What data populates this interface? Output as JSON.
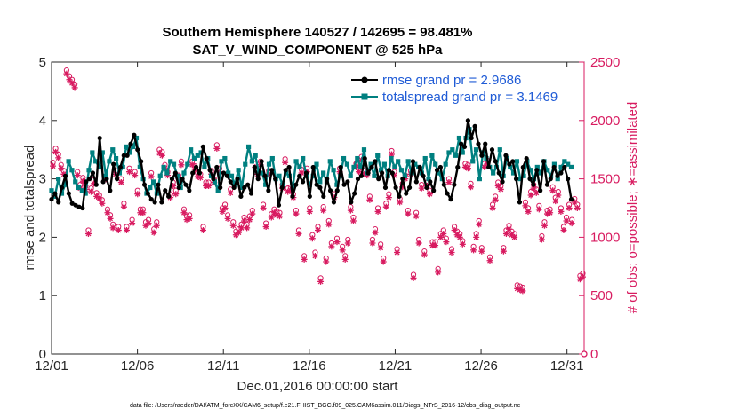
{
  "chart_data": {
    "type": "line",
    "title": "Southern Hemisphere 140527 / 142695 = 98.481%",
    "subtitle": "SAT_V_WIND_COMPONENT @ 525 hPa",
    "xlabel": "Dec.01,2016 00:00:00 start",
    "ylabel_left": "rmse and totalspread",
    "ylabel_right": "# of obs: o=possible; ∗=assimilated",
    "x_ticks": [
      "12/01",
      "12/06",
      "12/11",
      "12/16",
      "12/21",
      "12/26",
      "12/31"
    ],
    "x_tick_days": [
      0,
      5,
      10,
      15,
      20,
      25,
      30
    ],
    "xlim": [
      0,
      31
    ],
    "ylim_left": [
      0,
      5
    ],
    "y_ticks_left": [
      "0",
      "1",
      "2",
      "3",
      "4",
      "5"
    ],
    "ylim_right": [
      0,
      2500
    ],
    "y_ticks_right": [
      "0",
      "500",
      "1000",
      "1500",
      "2000",
      "2500"
    ],
    "legend_position": "top-right",
    "footer": "data file: /Users/raeder/DAI/ATM_forcXX/CAM6_setup/f.e21.FHIST_BGC.f09_025.CAM6assim.011/Diags_NTrS_2016-12/obs_diag_output.nc",
    "colors": {
      "rmse": "#000000",
      "spread": "#008080",
      "obs": "#d81b60",
      "right_axis": "#d81b60"
    },
    "series": [
      {
        "name": "rmse grand pr = 2.9686",
        "legend": "rmse grand pr = 2.9686",
        "axis": "left",
        "color": "#000000",
        "values": [
          2.65,
          2.75,
          2.6,
          2.85,
          3.05,
          2.75,
          2.58,
          2.55,
          2.52,
          2.5,
          2.95,
          3.0,
          3.1,
          2.9,
          3.7,
          2.95,
          3.0,
          2.8,
          3.25,
          3.0,
          3.2,
          3.4,
          3.4,
          3.6,
          3.75,
          3.5,
          3.3,
          2.9,
          2.75,
          2.65,
          2.6,
          2.9,
          2.6,
          2.8,
          2.7,
          3.0,
          3.1,
          2.85,
          3.0,
          2.9,
          2.8,
          3.1,
          3.2,
          3.1,
          3.55,
          3.35,
          3.15,
          3.0,
          3.2,
          2.85,
          3.1,
          3.05,
          2.95,
          2.85,
          3.0,
          2.7,
          2.85,
          2.9,
          2.75,
          3.2,
          3.0,
          3.3,
          3.05,
          2.8,
          3.15,
          3.0,
          2.55,
          2.85,
          3.15,
          3.2,
          2.7,
          2.9,
          3.05,
          2.95,
          3.1,
          2.7,
          3.2,
          2.9,
          2.85,
          2.7,
          3.0,
          2.8,
          2.6,
          2.8,
          3.2,
          2.9,
          2.95,
          2.6,
          2.75,
          3.0,
          3.05,
          3.35,
          3.1,
          3.2,
          3.3,
          3.0,
          3.1,
          2.85,
          3.15,
          3.1,
          2.85,
          2.7,
          3.0,
          2.75,
          2.85,
          3.3,
          2.95,
          3.2,
          3.05,
          2.85,
          2.95,
          2.8,
          3.15,
          3.2,
          2.9,
          2.75,
          2.65,
          2.9,
          3.2,
          3.6,
          3.55,
          4.0,
          3.7,
          3.9,
          3.6,
          3.4,
          3.6,
          3.2,
          3.5,
          3.3,
          3.1,
          2.95,
          3.4,
          3.25,
          3.3,
          3.0,
          2.6,
          3.2,
          3.35,
          3.0,
          2.9,
          3.15,
          2.8,
          3.3,
          2.9,
          3.0,
          3.2,
          3.05,
          3.1,
          3.2,
          3.0,
          2.65
        ]
      },
      {
        "name": "totalspread grand pr = 3.1469",
        "legend": "totalspread grand pr = 3.1469",
        "axis": "left",
        "color": "#008080",
        "values": [
          2.8,
          2.7,
          3.0,
          2.75,
          2.9,
          3.3,
          3.15,
          2.95,
          2.85,
          2.8,
          2.75,
          3.15,
          3.45,
          3.3,
          3.2,
          3.45,
          3.05,
          3.3,
          3.5,
          3.35,
          3.1,
          3.2,
          3.55,
          3.45,
          3.55,
          3.7,
          3.2,
          3.0,
          2.75,
          2.85,
          2.95,
          2.75,
          3.05,
          3.2,
          3.1,
          3.3,
          3.25,
          3.05,
          2.85,
          3.1,
          3.25,
          3.5,
          3.35,
          3.4,
          3.45,
          3.2,
          3.35,
          3.05,
          2.95,
          2.8,
          3.3,
          3.35,
          3.1,
          3.05,
          2.9,
          3.15,
          2.85,
          3.25,
          3.55,
          3.3,
          3.4,
          3.1,
          3.1,
          2.9,
          3.25,
          3.35,
          3.0,
          3.05,
          2.9,
          3.1,
          3.05,
          2.85,
          3.3,
          3.2,
          3.35,
          3.05,
          2.9,
          3.05,
          3.25,
          2.95,
          3.1,
          2.95,
          3.3,
          3.15,
          2.9,
          3.05,
          3.35,
          3.25,
          3.05,
          3.2,
          3.35,
          3.2,
          3.5,
          3.1,
          3.25,
          3.05,
          3.4,
          3.15,
          3.25,
          3.05,
          3.35,
          3.2,
          3.3,
          3.15,
          3.05,
          3.3,
          3.1,
          3.25,
          3.2,
          3.1,
          3.35,
          3.0,
          3.4,
          3.25,
          3.1,
          3.0,
          3.25,
          3.45,
          3.5,
          3.4,
          3.7,
          3.45,
          3.7,
          3.85,
          3.3,
          3.5,
          3.0,
          3.45,
          3.35,
          3.2,
          3.1,
          3.2,
          3.5,
          3.05,
          3.35,
          3.2,
          3.1,
          3.3,
          3.0,
          3.05,
          3.3,
          3.15,
          3.0,
          3.2,
          3.1,
          3.3,
          3.15,
          3.05,
          3.25,
          3.0,
          3.2,
          3.3,
          3.25,
          3.2
        ]
      },
      {
        "name": "# of obs possible/assimilated",
        "legend": "",
        "axis": "right",
        "color": "#d81b60",
        "marker": "o*",
        "values": [
          1610,
          1730,
          1680,
          1590,
          1540,
          2400,
          2350,
          2320,
          2280,
          1530,
          1420,
          1480,
          1410,
          1030,
          1390,
          1460,
          1350,
          1330,
          1290,
          1490,
          1210,
          1160,
          1080,
          1540,
          1060,
          1470,
          1260,
          1060,
          1560,
          1120,
          1530,
          1370,
          1210,
          1210,
          1100,
          1120,
          1520,
          1040,
          1100,
          1720,
          1700,
          1590,
          1530,
          1340,
          1440,
          1370,
          1500,
          1620,
          1210,
          1150,
          1160,
          1620,
          1580,
          1520,
          1510,
          1060,
          1440,
          1440,
          1540,
          1470,
          1760,
          1560,
          1220,
          1250,
          1160,
          1380,
          1100,
          1020,
          1040,
          1080,
          1140,
          1080,
          1150,
          1200,
          1600,
          1540,
          1620,
          1250,
          1090,
          1540,
          1170,
          1210,
          1190,
          1180,
          1420,
          1640,
          1390,
          1400,
          1340,
          1200,
          1030,
          1550,
          810,
          1560,
          1220,
          990,
          840,
          1060,
          620,
          1230,
          790,
          1110,
          920,
          1340,
          960,
          1560,
          890,
          810,
          950,
          1230,
          1140,
          1600,
          1560,
          1660,
          1540,
          1530,
          1320,
          950,
          1040,
          1220,
          910,
          790,
          1260,
          1340,
          1710,
          1530,
          870,
          1300,
          1430,
          1500,
          1200,
          1540,
          650,
          1180,
          950,
          1420,
          850,
          1440,
          1370,
          930,
          930,
          700,
          1000,
          1030,
          960,
          1470,
          870,
          1060,
          1020,
          1000,
          940,
          1600,
          1590,
          1430,
          890,
          1000,
          1110,
          880,
          1600,
          1630,
          800,
          1250,
          1320,
          1440,
          1410,
          880,
          1030,
          1070,
          1020,
          1000,
          560,
          550,
          540,
          1270,
          1220,
          1360,
          1420,
          1380,
          1240,
          980,
          1100,
          1200,
          1210,
          1400,
          1310,
          1360,
          1220,
          1060,
          1140,
          1250,
          1120,
          1300,
          1250,
          640,
          660
        ]
      }
    ]
  }
}
